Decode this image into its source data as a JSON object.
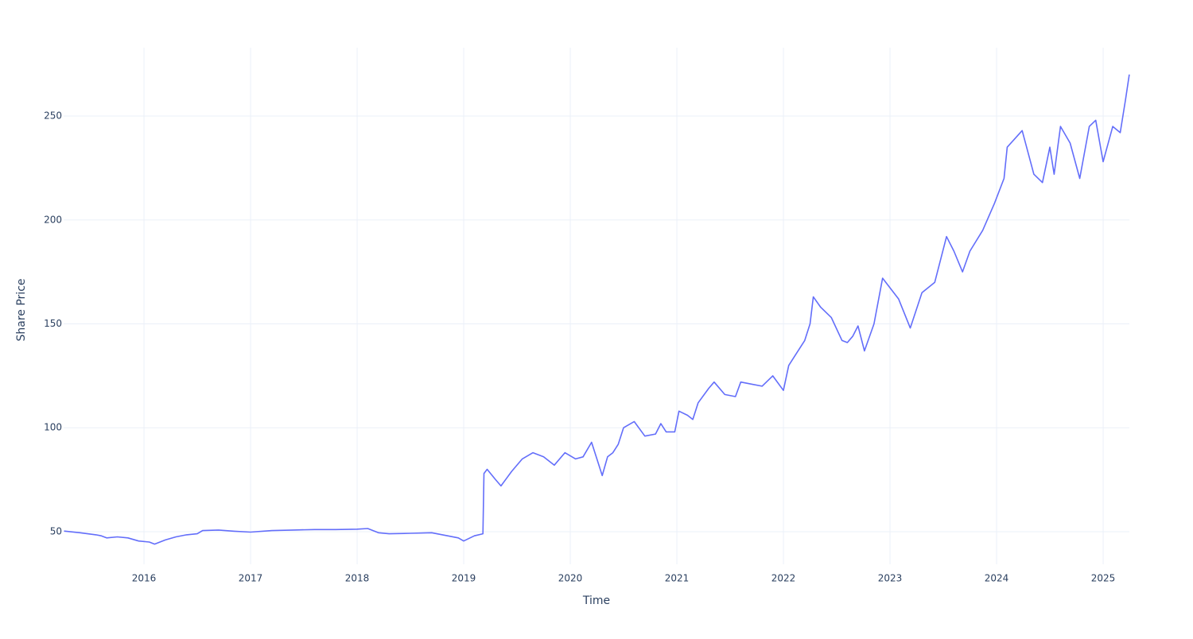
{
  "chart_data": {
    "type": "line",
    "x_label": "Time",
    "y_label": "Share Price",
    "color": "#636efa",
    "grid": true,
    "xlim": [
      2015.246,
      2025.246
    ],
    "xticks": [
      2016,
      2017,
      2018,
      2019,
      2020,
      2021,
      2022,
      2023,
      2024,
      2025
    ],
    "ylim": [
      34.3,
      282.9
    ],
    "yticks": [
      50,
      100,
      150,
      200,
      250
    ],
    "x": [
      2015.25,
      2015.4,
      2015.55,
      2015.6,
      2015.65,
      2015.75,
      2015.85,
      2015.95,
      2016.05,
      2016.1,
      2016.2,
      2016.3,
      2016.4,
      2016.5,
      2016.55,
      2016.7,
      2016.85,
      2017.0,
      2017.2,
      2017.4,
      2017.6,
      2017.8,
      2018.0,
      2018.1,
      2018.2,
      2018.3,
      2018.5,
      2018.7,
      2018.85,
      2018.95,
      2019.0,
      2019.1,
      2019.18,
      2019.19,
      2019.22,
      2019.3,
      2019.35,
      2019.45,
      2019.55,
      2019.65,
      2019.75,
      2019.85,
      2019.95,
      2020.05,
      2020.12,
      2020.2,
      2020.25,
      2020.3,
      2020.35,
      2020.4,
      2020.45,
      2020.5,
      2020.6,
      2020.7,
      2020.8,
      2020.85,
      2020.9,
      2020.98,
      2021.02,
      2021.1,
      2021.15,
      2021.2,
      2021.3,
      2021.35,
      2021.45,
      2021.55,
      2021.6,
      2021.7,
      2021.8,
      2021.9,
      2022.0,
      2022.05,
      2022.1,
      2022.2,
      2022.25,
      2022.28,
      2022.35,
      2022.45,
      2022.55,
      2022.6,
      2022.65,
      2022.7,
      2022.76,
      2022.85,
      2022.93,
      2023.08,
      2023.19,
      2023.3,
      2023.42,
      2023.53,
      2023.6,
      2023.68,
      2023.75,
      2023.87,
      2023.98,
      2024.07,
      2024.1,
      2024.24,
      2024.35,
      2024.43,
      2024.5,
      2024.54,
      2024.6,
      2024.69,
      2024.78,
      2024.87,
      2024.93,
      2025.0,
      2025.09,
      2025.16,
      2025.21,
      2025.245
    ],
    "values": [
      50.3,
      49.5,
      48.5,
      48,
      47,
      47.5,
      47,
      45.5,
      45,
      44,
      46,
      47.5,
      48.5,
      49,
      50.5,
      50.8,
      50.2,
      49.8,
      50.5,
      50.8,
      51,
      51,
      51.2,
      51.5,
      49.5,
      49,
      49.2,
      49.5,
      48,
      47,
      45.5,
      48,
      49,
      78,
      80,
      75,
      72,
      79,
      85,
      88,
      86,
      82,
      88,
      85,
      86,
      93,
      85,
      77,
      86,
      88,
      92,
      100,
      103,
      96,
      97,
      102,
      98,
      98,
      108,
      106,
      104,
      112,
      119,
      122,
      116,
      115,
      122,
      121,
      120,
      125,
      118,
      130,
      134,
      142,
      150,
      163,
      158,
      153,
      142,
      141,
      144,
      149,
      137,
      150,
      172,
      162,
      148,
      165,
      170,
      192,
      185,
      175,
      185,
      195,
      208,
      220,
      235,
      243,
      222,
      218,
      235,
      222,
      245,
      237,
      220,
      245,
      248,
      228,
      245,
      242,
      258,
      270
    ]
  }
}
